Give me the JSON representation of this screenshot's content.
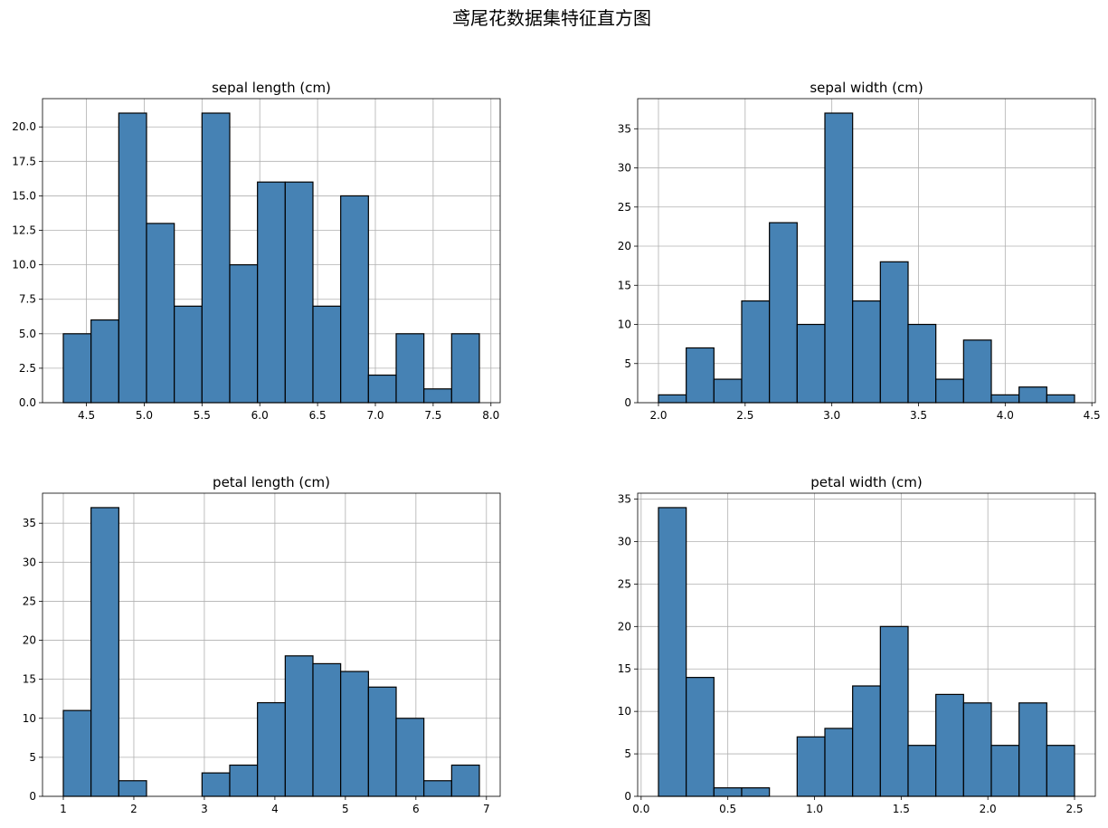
{
  "figure_title": "鸢尾花数据集特征直方图",
  "colors": {
    "bar_fill": "#4682b4",
    "bar_edge": "#000000",
    "grid": "#b0b0b0",
    "axis": "#000000"
  },
  "chart_data": [
    {
      "type": "bar",
      "title": "sepal length (cm)",
      "grid": true,
      "bin_edges": [
        4.3,
        4.54,
        4.78,
        5.02,
        5.26,
        5.5,
        5.74,
        5.98,
        6.22,
        6.46,
        6.7,
        6.94,
        7.18,
        7.42,
        7.66,
        7.9
      ],
      "values": [
        5,
        6,
        21,
        13,
        7,
        21,
        10,
        16,
        16,
        7,
        15,
        2,
        5,
        1,
        5
      ],
      "xlim": [
        4.12,
        8.08
      ],
      "ylim": [
        0,
        22.05
      ],
      "xticks": [
        4.5,
        5.0,
        5.5,
        6.0,
        6.5,
        7.0,
        7.5,
        8.0
      ],
      "xtick_labels": [
        "4.5",
        "5.0",
        "5.5",
        "6.0",
        "6.5",
        "7.0",
        "7.5",
        "8.0"
      ],
      "yticks": [
        0,
        2.5,
        5,
        7.5,
        10,
        12.5,
        15,
        17.5,
        20
      ],
      "ytick_labels": [
        "0.0",
        "2.5",
        "5.0",
        "7.5",
        "10.0",
        "12.5",
        "15.0",
        "17.5",
        "20.0"
      ]
    },
    {
      "type": "bar",
      "title": "sepal width (cm)",
      "grid": true,
      "bin_edges": [
        2.0,
        2.16,
        2.32,
        2.48,
        2.64,
        2.8,
        2.96,
        3.12,
        3.28,
        3.44,
        3.6,
        3.76,
        3.92,
        4.08,
        4.24,
        4.4
      ],
      "values": [
        1,
        7,
        3,
        13,
        23,
        10,
        37,
        13,
        18,
        10,
        3,
        8,
        1,
        2,
        1
      ],
      "xlim": [
        1.88,
        4.52
      ],
      "ylim": [
        0,
        38.85
      ],
      "xticks": [
        2.0,
        2.5,
        3.0,
        3.5,
        4.0,
        4.5
      ],
      "xtick_labels": [
        "2.0",
        "2.5",
        "3.0",
        "3.5",
        "4.0",
        "4.5"
      ],
      "yticks": [
        0,
        5,
        10,
        15,
        20,
        25,
        30,
        35
      ],
      "ytick_labels": [
        "0",
        "5",
        "10",
        "15",
        "20",
        "25",
        "30",
        "35"
      ]
    },
    {
      "type": "bar",
      "title": "petal length (cm)",
      "grid": true,
      "bin_edges": [
        1.0,
        1.393,
        1.787,
        2.18,
        2.573,
        2.967,
        3.36,
        3.753,
        4.147,
        4.54,
        4.933,
        5.327,
        5.72,
        6.113,
        6.507,
        6.9
      ],
      "values": [
        11,
        37,
        2,
        0,
        0,
        3,
        4,
        12,
        18,
        17,
        16,
        14,
        10,
        2,
        4
      ],
      "xlim": [
        0.705,
        7.195
      ],
      "ylim": [
        0,
        38.85
      ],
      "xticks": [
        1,
        2,
        3,
        4,
        5,
        6,
        7
      ],
      "xtick_labels": [
        "1",
        "2",
        "3",
        "4",
        "5",
        "6",
        "7"
      ],
      "yticks": [
        0,
        5,
        10,
        15,
        20,
        25,
        30,
        35
      ],
      "ytick_labels": [
        "0",
        "5",
        "10",
        "15",
        "20",
        "25",
        "30",
        "35"
      ]
    },
    {
      "type": "bar",
      "title": "petal width (cm)",
      "grid": true,
      "bin_edges": [
        0.1,
        0.26,
        0.42,
        0.58,
        0.74,
        0.9,
        1.06,
        1.22,
        1.38,
        1.54,
        1.7,
        1.86,
        2.02,
        2.18,
        2.34,
        2.5
      ],
      "values": [
        34,
        14,
        1,
        1,
        0,
        7,
        8,
        13,
        20,
        6,
        12,
        11,
        6,
        11,
        6
      ],
      "xlim": [
        -0.02,
        2.62
      ],
      "ylim": [
        0,
        35.7
      ],
      "xticks": [
        0.0,
        0.5,
        1.0,
        1.5,
        2.0,
        2.5
      ],
      "xtick_labels": [
        "0.0",
        "0.5",
        "1.0",
        "1.5",
        "2.0",
        "2.5"
      ],
      "yticks": [
        0,
        5,
        10,
        15,
        20,
        25,
        30,
        35
      ],
      "ytick_labels": [
        "0",
        "5",
        "10",
        "15",
        "20",
        "25",
        "30",
        "35"
      ]
    }
  ]
}
